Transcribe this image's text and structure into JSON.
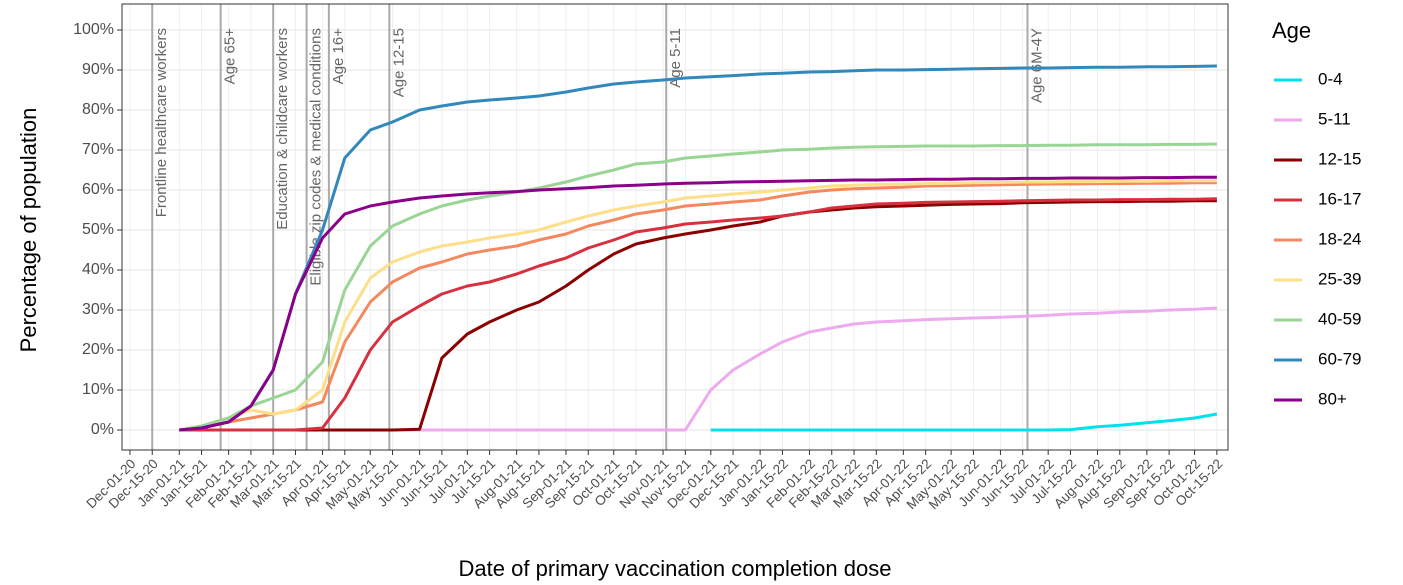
{
  "chart_data": {
    "type": "line",
    "x_label": "Date of primary vaccination completion dose",
    "y_label": "Percentage of population",
    "legend_title": "Age",
    "legend_position": "right",
    "grid": true,
    "xlim": [
      "2020-11-26",
      "2022-10-22"
    ],
    "ylim": [
      -5,
      106.5
    ],
    "yticks": [
      {
        "value": 0,
        "label": "0%"
      },
      {
        "value": 10,
        "label": "10%"
      },
      {
        "value": 20,
        "label": "20%"
      },
      {
        "value": 30,
        "label": "30%"
      },
      {
        "value": 40,
        "label": "40%"
      },
      {
        "value": 50,
        "label": "50%"
      },
      {
        "value": 60,
        "label": "60%"
      },
      {
        "value": 70,
        "label": "70%"
      },
      {
        "value": 80,
        "label": "80%"
      },
      {
        "value": 90,
        "label": "90%"
      },
      {
        "value": 100,
        "label": "100%"
      }
    ],
    "xticks": [
      {
        "value": "2020-12-01",
        "label": "Dec-01-20"
      },
      {
        "value": "2020-12-15",
        "label": "Dec-15-20"
      },
      {
        "value": "2021-01-01",
        "label": "Jan-01-21"
      },
      {
        "value": "2021-01-15",
        "label": "Jan-15-21"
      },
      {
        "value": "2021-02-01",
        "label": "Feb-01-21"
      },
      {
        "value": "2021-02-15",
        "label": "Feb-15-21"
      },
      {
        "value": "2021-03-01",
        "label": "Mar-01-21"
      },
      {
        "value": "2021-03-15",
        "label": "Mar-15-21"
      },
      {
        "value": "2021-04-01",
        "label": "Apr-01-21"
      },
      {
        "value": "2021-04-15",
        "label": "Apr-15-21"
      },
      {
        "value": "2021-05-01",
        "label": "May-01-21"
      },
      {
        "value": "2021-05-15",
        "label": "May-15-21"
      },
      {
        "value": "2021-06-01",
        "label": "Jun-01-21"
      },
      {
        "value": "2021-06-15",
        "label": "Jun-15-21"
      },
      {
        "value": "2021-07-01",
        "label": "Jul-01-21"
      },
      {
        "value": "2021-07-15",
        "label": "Jul-15-21"
      },
      {
        "value": "2021-08-01",
        "label": "Aug-01-21"
      },
      {
        "value": "2021-08-15",
        "label": "Aug-15-21"
      },
      {
        "value": "2021-09-01",
        "label": "Sep-01-21"
      },
      {
        "value": "2021-09-15",
        "label": "Sep-15-21"
      },
      {
        "value": "2021-10-01",
        "label": "Oct-01-21"
      },
      {
        "value": "2021-10-15",
        "label": "Oct-15-21"
      },
      {
        "value": "2021-11-01",
        "label": "Nov-01-21"
      },
      {
        "value": "2021-11-15",
        "label": "Nov-15-21"
      },
      {
        "value": "2021-12-01",
        "label": "Dec-01-21"
      },
      {
        "value": "2021-12-15",
        "label": "Dec-15-21"
      },
      {
        "value": "2022-01-01",
        "label": "Jan-01-22"
      },
      {
        "value": "2022-01-15",
        "label": "Jan-15-22"
      },
      {
        "value": "2022-02-01",
        "label": "Feb-01-22"
      },
      {
        "value": "2022-02-15",
        "label": "Feb-15-22"
      },
      {
        "value": "2022-03-01",
        "label": "Mar-01-22"
      },
      {
        "value": "2022-03-15",
        "label": "Mar-15-22"
      },
      {
        "value": "2022-04-01",
        "label": "Apr-01-22"
      },
      {
        "value": "2022-04-15",
        "label": "Apr-15-22"
      },
      {
        "value": "2022-05-01",
        "label": "May-01-22"
      },
      {
        "value": "2022-05-15",
        "label": "May-15-22"
      },
      {
        "value": "2022-06-01",
        "label": "Jun-01-22"
      },
      {
        "value": "2022-06-15",
        "label": "Jun-15-22"
      },
      {
        "value": "2022-07-01",
        "label": "Jul-01-22"
      },
      {
        "value": "2022-07-15",
        "label": "Jul-15-22"
      },
      {
        "value": "2022-08-01",
        "label": "Aug-01-22"
      },
      {
        "value": "2022-08-15",
        "label": "Aug-15-22"
      },
      {
        "value": "2022-09-01",
        "label": "Sep-01-22"
      },
      {
        "value": "2022-09-15",
        "label": "Sep-15-22"
      },
      {
        "value": "2022-10-01",
        "label": "Oct-01-22"
      },
      {
        "value": "2022-10-15",
        "label": "Oct-15-22"
      }
    ],
    "annotations": [
      {
        "x": "2020-12-15",
        "label": "Frontline healthcare workers"
      },
      {
        "x": "2021-01-27",
        "label": "Age 65+"
      },
      {
        "x": "2021-03-01",
        "label": "Education & childcare workers"
      },
      {
        "x": "2021-03-22",
        "label": "Eligible zip codes & medical conditions"
      },
      {
        "x": "2021-04-05",
        "label": "Age 16+"
      },
      {
        "x": "2021-05-13",
        "label": "Age 12-15"
      },
      {
        "x": "2021-11-03",
        "label": "Age 5-11"
      },
      {
        "x": "2022-06-18",
        "label": "Age 6M-4Y"
      }
    ],
    "x": [
      "2021-01-01",
      "2021-01-15",
      "2021-02-01",
      "2021-02-15",
      "2021-03-01",
      "2021-03-15",
      "2021-04-01",
      "2021-04-15",
      "2021-05-01",
      "2021-05-15",
      "2021-06-01",
      "2021-06-15",
      "2021-07-01",
      "2021-07-15",
      "2021-08-01",
      "2021-08-15",
      "2021-09-01",
      "2021-09-15",
      "2021-10-01",
      "2021-10-15",
      "2021-11-01",
      "2021-11-15",
      "2021-12-01",
      "2021-12-15",
      "2022-01-01",
      "2022-01-15",
      "2022-02-01",
      "2022-02-15",
      "2022-03-01",
      "2022-03-15",
      "2022-04-01",
      "2022-04-15",
      "2022-05-01",
      "2022-05-15",
      "2022-06-01",
      "2022-06-15",
      "2022-07-01",
      "2022-07-15",
      "2022-08-01",
      "2022-08-15",
      "2022-09-01",
      "2022-09-15",
      "2022-10-01",
      "2022-10-15"
    ],
    "series": [
      {
        "name": "0-4",
        "color": "#00e0ee",
        "values": [
          null,
          null,
          null,
          null,
          null,
          null,
          null,
          null,
          null,
          null,
          null,
          null,
          null,
          null,
          null,
          null,
          null,
          null,
          null,
          null,
          null,
          null,
          0,
          0,
          0,
          0,
          0,
          0,
          0,
          0,
          0,
          0,
          0,
          0,
          0,
          0,
          0,
          0.1,
          0.8,
          1.2,
          1.8,
          2.3,
          3,
          4
        ]
      },
      {
        "name": "5-11",
        "color": "#eeaaee",
        "values": [
          0,
          0,
          0,
          0,
          0,
          0,
          0,
          0,
          0,
          0,
          0,
          0,
          0,
          0,
          0,
          0,
          0,
          0,
          0,
          0,
          0,
          0,
          10,
          15,
          19,
          22,
          24.5,
          25.5,
          26.5,
          27,
          27.3,
          27.6,
          27.8,
          28,
          28.2,
          28.4,
          28.7,
          29,
          29.2,
          29.5,
          29.7,
          30,
          30.2,
          30.5
        ]
      },
      {
        "name": "12-15",
        "color": "#8b0000",
        "values": [
          0,
          0,
          0,
          0,
          0,
          0,
          0,
          0,
          0,
          0,
          0.2,
          18,
          24,
          27,
          30,
          32,
          36,
          40,
          44,
          46.5,
          48,
          49,
          50,
          51,
          52,
          53.5,
          54.5,
          55,
          55.5,
          55.8,
          56,
          56.2,
          56.4,
          56.5,
          56.6,
          56.8,
          56.9,
          57,
          57.1,
          57.1,
          57.2,
          57.2,
          57.3,
          57.3
        ]
      },
      {
        "name": "16-17",
        "color": "#d7303f",
        "values": [
          0,
          0,
          0,
          0,
          0,
          0,
          0.5,
          8,
          20,
          27,
          31,
          34,
          36,
          37,
          39,
          41,
          43,
          45.5,
          47.5,
          49.5,
          50.5,
          51.5,
          52,
          52.5,
          53,
          53.5,
          54.5,
          55.5,
          56,
          56.5,
          56.7,
          56.9,
          57,
          57.1,
          57.2,
          57.3,
          57.4,
          57.5,
          57.5,
          57.6,
          57.6,
          57.7,
          57.7,
          57.8
        ]
      },
      {
        "name": "18-24",
        "color": "#f4895f",
        "values": [
          0,
          0.5,
          2,
          3,
          4,
          5,
          7,
          22,
          32,
          37,
          40.5,
          42,
          44,
          45,
          46,
          47.5,
          49,
          51,
          52.5,
          54,
          55,
          56,
          56.5,
          57,
          57.5,
          58.5,
          59.5,
          60,
          60.3,
          60.5,
          60.7,
          61,
          61.1,
          61.2,
          61.3,
          61.4,
          61.5,
          61.5,
          61.6,
          61.6,
          61.7,
          61.7,
          61.8,
          61.8
        ]
      },
      {
        "name": "25-39",
        "color": "#fedf89",
        "values": [
          0,
          1,
          3,
          5,
          4,
          5,
          10,
          27,
          38,
          42,
          44.5,
          46,
          47,
          48,
          49,
          50,
          52,
          53.5,
          55,
          56,
          57,
          58,
          58.5,
          59,
          59.5,
          60,
          60.5,
          61,
          61.2,
          61.4,
          61.5,
          61.6,
          61.7,
          61.8,
          61.9,
          62,
          62,
          62.1,
          62.1,
          62.2,
          62.2,
          62.3,
          62.3,
          62.3
        ]
      },
      {
        "name": "40-59",
        "color": "#99d594",
        "values": [
          0,
          1,
          3,
          6,
          8,
          10,
          17,
          35,
          46,
          51,
          54,
          56,
          57.5,
          58.5,
          59.5,
          60.5,
          62,
          63.5,
          65,
          66.5,
          67,
          68,
          68.5,
          69,
          69.5,
          70,
          70.2,
          70.5,
          70.7,
          70.8,
          70.9,
          71,
          71,
          71,
          71.1,
          71.1,
          71.2,
          71.2,
          71.3,
          71.3,
          71.3,
          71.4,
          71.4,
          71.5
        ]
      },
      {
        "name": "60-79",
        "color": "#3288bd",
        "values": [
          0,
          0.5,
          2,
          6,
          15,
          34,
          50,
          68,
          75,
          77,
          80,
          81,
          82,
          82.5,
          83,
          83.5,
          84.5,
          85.5,
          86.5,
          87,
          87.5,
          88,
          88.3,
          88.6,
          89,
          89.2,
          89.5,
          89.6,
          89.8,
          90,
          90,
          90.1,
          90.2,
          90.3,
          90.4,
          90.5,
          90.5,
          90.6,
          90.7,
          90.7,
          90.8,
          90.8,
          90.9,
          91
        ]
      },
      {
        "name": "80+",
        "color": "#8b008b",
        "values": [
          0,
          0.5,
          2,
          6,
          15,
          34,
          48,
          54,
          56,
          57,
          58,
          58.5,
          59,
          59.3,
          59.6,
          60,
          60.3,
          60.6,
          61,
          61.2,
          61.5,
          61.7,
          61.8,
          62,
          62.1,
          62.2,
          62.3,
          62.4,
          62.5,
          62.5,
          62.6,
          62.7,
          62.7,
          62.8,
          62.8,
          62.9,
          62.9,
          63,
          63,
          63,
          63.1,
          63.1,
          63.2,
          63.2
        ]
      }
    ]
  }
}
